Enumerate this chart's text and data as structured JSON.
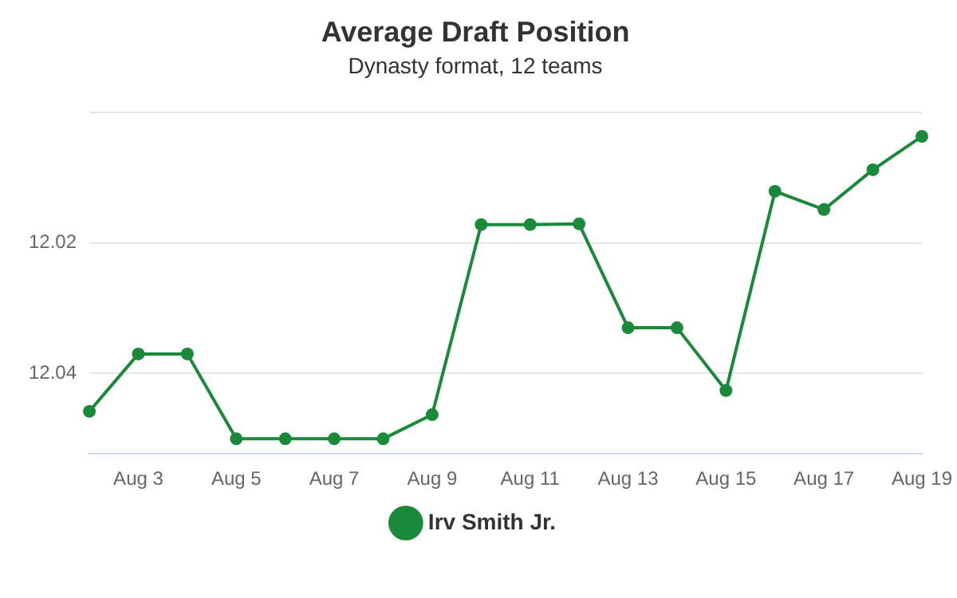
{
  "chart_data": {
    "type": "line",
    "title": "Average Draft Position",
    "subtitle": "Dynasty format, 12 teams",
    "categories": [
      null,
      "Aug 3",
      null,
      "Aug 5",
      null,
      "Aug 7",
      null,
      "Aug 9",
      null,
      "Aug 11",
      null,
      "Aug 13",
      null,
      "Aug 15",
      null,
      "Aug 17",
      null,
      "Aug 19"
    ],
    "series": [
      {
        "name": "Irv Smith Jr.",
        "color": "#1a8a3a",
        "values": [
          12.0458,
          12.037,
          12.037,
          12.05,
          12.05,
          12.05,
          12.05,
          12.0463,
          12.0172,
          12.0172,
          12.0171,
          12.033,
          12.033,
          12.0426,
          12.0121,
          12.0149,
          12.0088,
          12.0037
        ]
      }
    ],
    "ylim": [
      12.0523,
      12.0
    ],
    "yticks": [
      {
        "value": 12.0,
        "label": null
      },
      12.02,
      12.04
    ],
    "grid": "y",
    "legend": "bottom",
    "marker": "circle",
    "line_style": "solid"
  }
}
